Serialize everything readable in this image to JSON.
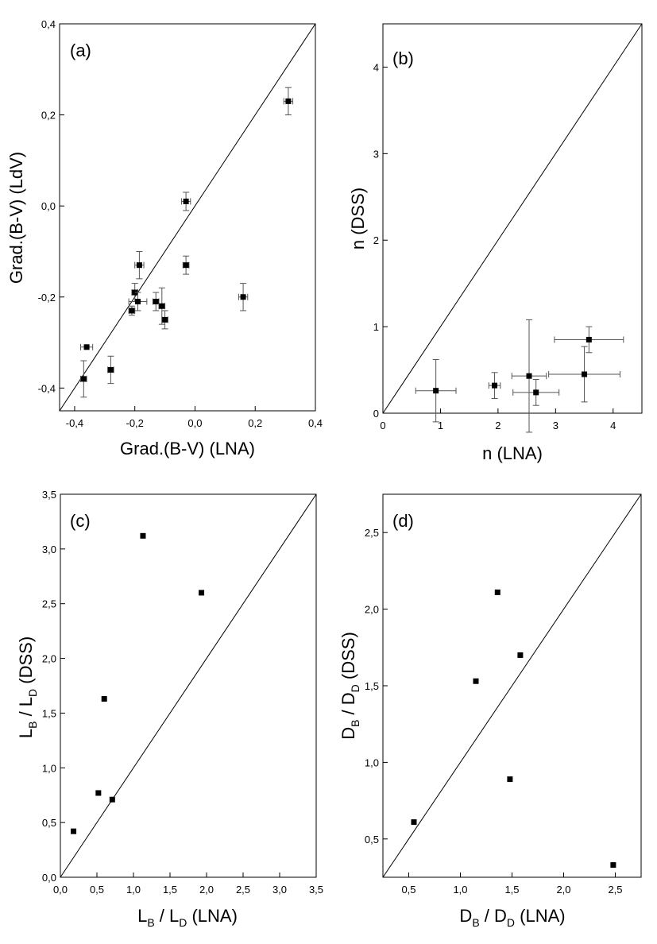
{
  "figure": {
    "panels": [
      {
        "id": "a",
        "label": "(a)",
        "xlabel": "Grad.(B-V) (LNA)",
        "ylabel": "Grad.(B-V) (LdV)"
      },
      {
        "id": "b",
        "label": "(b)",
        "xlabel": "n (LNA)",
        "ylabel": "n (DSS)"
      },
      {
        "id": "c",
        "label": "(c)",
        "xlabel_parts": [
          "L",
          "B",
          " / L",
          "D",
          " (LNA)"
        ],
        "ylabel_parts": [
          "L",
          "B",
          " / L",
          "D",
          " (DSS)"
        ]
      },
      {
        "id": "d",
        "label": "(d)",
        "xlabel_parts": [
          "D",
          "B",
          " / D",
          "D",
          " (LNA)"
        ],
        "ylabel_parts": [
          "D",
          "B",
          " / D",
          "D",
          " (DSS)"
        ]
      }
    ]
  },
  "chart_data": [
    {
      "type": "scatter",
      "panel": "(a)",
      "xlabel": "Grad.(B-V) (LNA)",
      "ylabel": "Grad.(B-V) (LdV)",
      "xlim": [
        -0.45,
        0.4
      ],
      "ylim": [
        -0.45,
        0.4
      ],
      "xticks": [
        -0.4,
        -0.2,
        0.0,
        0.2,
        0.4
      ],
      "yticks": [
        -0.4,
        -0.2,
        0.0,
        0.2,
        0.4
      ],
      "xtick_labels": [
        "-0,4",
        "-0,2",
        "0,0",
        "0,2",
        "0,4"
      ],
      "ytick_labels": [
        "-0,4",
        "-0,2",
        "0,0",
        "0,2",
        "0,4"
      ],
      "reference_line": "y = x",
      "points": [
        {
          "x": 0.31,
          "y": 0.23,
          "xerr": 0.015,
          "yerr": 0.03
        },
        {
          "x": -0.03,
          "y": 0.01,
          "xerr": 0.015,
          "yerr": 0.02
        },
        {
          "x": -0.185,
          "y": -0.13,
          "xerr": 0.015,
          "yerr": 0.03
        },
        {
          "x": -0.03,
          "y": -0.13,
          "xerr": 0.01,
          "yerr": 0.02
        },
        {
          "x": -0.2,
          "y": -0.19,
          "xerr": 0.01,
          "yerr": 0.02
        },
        {
          "x": -0.19,
          "y": -0.21,
          "xerr": 0.03,
          "yerr": 0.02
        },
        {
          "x": -0.21,
          "y": -0.23,
          "xerr": 0.01,
          "yerr": 0.01
        },
        {
          "x": -0.13,
          "y": -0.21,
          "xerr": 0.01,
          "yerr": 0.02
        },
        {
          "x": -0.11,
          "y": -0.22,
          "xerr": 0.01,
          "yerr": 0.04
        },
        {
          "x": -0.1,
          "y": -0.25,
          "xerr": 0.01,
          "yerr": 0.02
        },
        {
          "x": 0.16,
          "y": -0.2,
          "xerr": 0.015,
          "yerr": 0.03
        },
        {
          "x": -0.36,
          "y": -0.31,
          "xerr": 0.02,
          "yerr": 0.0
        },
        {
          "x": -0.28,
          "y": -0.36,
          "xerr": 0.01,
          "yerr": 0.03
        },
        {
          "x": -0.37,
          "y": -0.38,
          "xerr": 0.01,
          "yerr": 0.04
        }
      ]
    },
    {
      "type": "scatter",
      "panel": "(b)",
      "xlabel": "n (LNA)",
      "ylabel": "n (DSS)",
      "xlim": [
        0,
        4.5
      ],
      "ylim": [
        0,
        4.5
      ],
      "xticks": [
        0,
        1,
        2,
        3,
        4
      ],
      "yticks": [
        0,
        1,
        2,
        3,
        4
      ],
      "xtick_labels": [
        "0",
        "1",
        "2",
        "3",
        "4"
      ],
      "ytick_labels": [
        "0",
        "1",
        "2",
        "3",
        "4"
      ],
      "reference_line": "y = x",
      "points": [
        {
          "x": 0.92,
          "y": 0.26,
          "xerr": 0.35,
          "yerr": 0.36
        },
        {
          "x": 1.94,
          "y": 0.32,
          "xerr": 0.1,
          "yerr": 0.15
        },
        {
          "x": 2.54,
          "y": 0.43,
          "xerr": 0.3,
          "yerr": 0.65
        },
        {
          "x": 2.66,
          "y": 0.24,
          "xerr": 0.4,
          "yerr": 0.15
        },
        {
          "x": 3.5,
          "y": 0.45,
          "xerr": 0.62,
          "yerr": 0.32
        },
        {
          "x": 3.58,
          "y": 0.85,
          "xerr": 0.6,
          "yerr": 0.15
        }
      ]
    },
    {
      "type": "scatter",
      "panel": "(c)",
      "xlabel": "L_B / L_D (LNA)",
      "ylabel": "L_B / L_D (DSS)",
      "xlim": [
        0,
        3.5
      ],
      "ylim": [
        0,
        3.5
      ],
      "xticks": [
        0,
        0.5,
        1,
        1.5,
        2,
        2.5,
        3,
        3.5
      ],
      "yticks": [
        0,
        0.5,
        1,
        1.5,
        2,
        2.5,
        3,
        3.5
      ],
      "xtick_labels": [
        "0,0",
        "0,5",
        "1,0",
        "1,5",
        "2,0",
        "2,5",
        "3,0",
        "3,5"
      ],
      "ytick_labels": [
        "0,0",
        "0,5",
        "1,0",
        "1,5",
        "2,0",
        "2,5",
        "3,0",
        "3,5"
      ],
      "reference_line": "y = x",
      "points": [
        {
          "x": 0.18,
          "y": 0.42
        },
        {
          "x": 0.52,
          "y": 0.77
        },
        {
          "x": 0.6,
          "y": 1.63
        },
        {
          "x": 0.71,
          "y": 0.71
        },
        {
          "x": 1.13,
          "y": 3.12
        },
        {
          "x": 1.93,
          "y": 2.6
        }
      ]
    },
    {
      "type": "scatter",
      "panel": "(d)",
      "xlabel": "D_B / D_D (LNA)",
      "ylabel": "D_B / D_D (DSS)",
      "xlim": [
        0.25,
        2.75
      ],
      "ylim": [
        0.25,
        2.75
      ],
      "xticks": [
        0.5,
        1,
        1.5,
        2,
        2.5
      ],
      "yticks": [
        0.5,
        1,
        1.5,
        2,
        2.5
      ],
      "xtick_labels": [
        "0,5",
        "1,0",
        "1,5",
        "2,0",
        "2,5"
      ],
      "ytick_labels": [
        "0,5",
        "1,0",
        "1,5",
        "2,0",
        "2,5"
      ],
      "reference_line": "y = x",
      "points": [
        {
          "x": 0.55,
          "y": 0.61
        },
        {
          "x": 1.15,
          "y": 1.53
        },
        {
          "x": 1.36,
          "y": 2.11
        },
        {
          "x": 1.48,
          "y": 0.89
        },
        {
          "x": 1.58,
          "y": 1.7
        },
        {
          "x": 2.48,
          "y": 0.33
        }
      ]
    }
  ]
}
